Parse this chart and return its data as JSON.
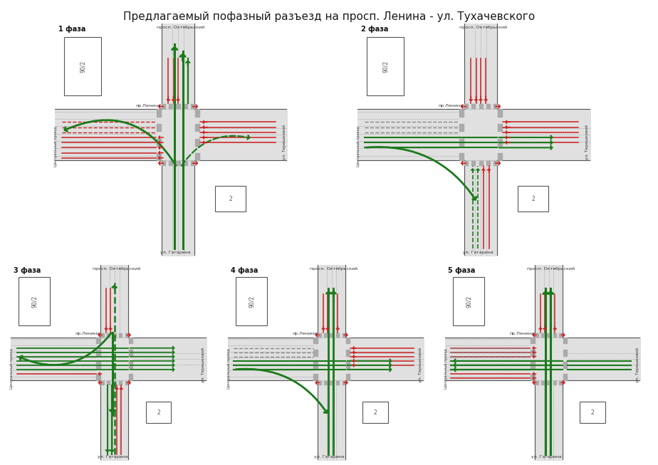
{
  "title": "Предлагаемый пофазный разъезд на просп. Ленина - ул. Тухачевского",
  "title_fontsize": 11,
  "bg": "#ffffff",
  "green": "#1a7a1a",
  "red": "#cc2020",
  "road_fill": "#e0e0e0",
  "road_border": "#555555",
  "cross_fill": "#aaaaaa",
  "lane_line": "#888888",
  "phases": [
    "1 фаза",
    "2 фаза",
    "3 фаза",
    "4 фаза",
    "5 фаза"
  ],
  "oktyabrsky": "просп. Октябрьский",
  "lenina": "пр.Ленина",
  "tereschkovoy": "ул. Терешковой",
  "gagarina": "ул. Гагарина",
  "centralny": "Центральный проезд",
  "bld1": "90/2",
  "bld2": "2"
}
